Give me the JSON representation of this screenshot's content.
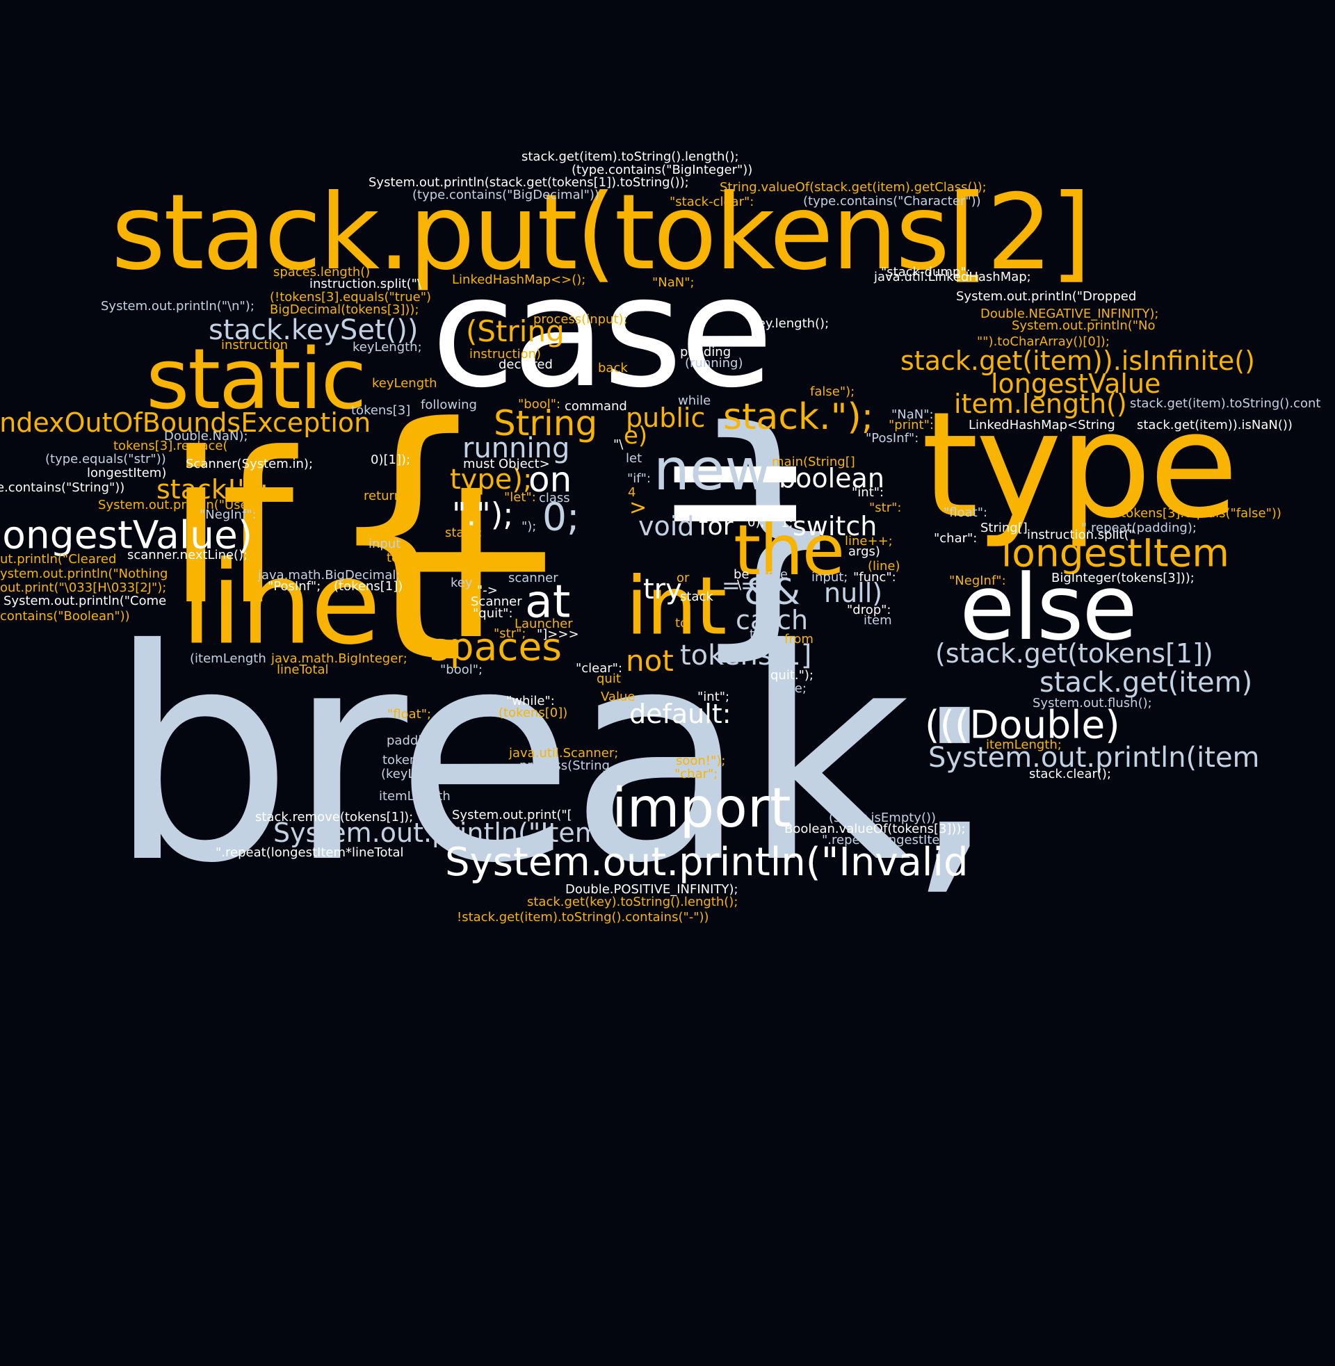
{
  "palette": {
    "background": "#03060f",
    "white": "#ffffff",
    "yellow": "#f8b400",
    "light": "#c3d2e2"
  },
  "words": [
    {
      "text": "break;",
      "color": "light"
    },
    {
      "text": "case",
      "color": "white"
    },
    {
      "text": "if",
      "color": "yellow"
    },
    {
      "text": "{",
      "color": "yellow"
    },
    {
      "text": "}",
      "color": "light"
    },
    {
      "text": "+",
      "color": "yellow"
    },
    {
      "text": "=",
      "color": "white"
    },
    {
      "text": "type",
      "color": "yellow"
    },
    {
      "text": "stack.put(tokens[2]",
      "color": "yellow"
    },
    {
      "text": "line",
      "color": "yellow"
    },
    {
      "text": "static",
      "color": "yellow"
    },
    {
      "text": "else",
      "color": "white"
    },
    {
      "text": "int",
      "color": "yellow"
    },
    {
      "text": "the",
      "color": "yellow"
    },
    {
      "text": "new",
      "color": "light"
    },
    {
      "text": "import",
      "color": "white"
    },
    {
      "text": "System.out.println(\"Invalid",
      "color": "white"
    },
    {
      "text": "longestValue)",
      "color": "white"
    },
    {
      "text": "IndexOutOfBoundsException",
      "color": "yellow"
    },
    {
      "text": "stack.keySet())",
      "color": "light"
    },
    {
      "text": "(String",
      "color": "yellow"
    },
    {
      "text": "String",
      "color": "yellow"
    },
    {
      "text": "stack.\");",
      "color": "yellow"
    },
    {
      "text": "public",
      "color": "yellow"
    },
    {
      "text": "e)",
      "color": "yellow"
    },
    {
      "text": "running",
      "color": "light"
    },
    {
      "text": "type);",
      "color": "yellow"
    },
    {
      "text": "on",
      "color": "white"
    },
    {
      "text": "\".\");",
      "color": "white"
    },
    {
      "text": "0;",
      "color": "light"
    },
    {
      "text": "boolean",
      "color": "white"
    },
    {
      "text": "void",
      "color": "light"
    },
    {
      "text": "for",
      "color": "white"
    },
    {
      "text": "switch",
      "color": "white"
    },
    {
      "text": "stack!\");",
      "color": "yellow"
    },
    {
      "text": "at",
      "color": "white"
    },
    {
      "text": "spaces",
      "color": "yellow"
    },
    {
      "text": "try",
      "color": "white"
    },
    {
      "text": "&&",
      "color": "light"
    },
    {
      "text": "==",
      "color": "light"
    },
    {
      "text": "null)",
      "color": "light"
    },
    {
      "text": "catch",
      "color": "light"
    },
    {
      "text": "tokens[1]",
      "color": "light"
    },
    {
      "text": "not",
      "color": "yellow"
    },
    {
      "text": "default:",
      "color": "white"
    },
    {
      "text": "stack.get(item)).isInfinite()",
      "color": "yellow"
    },
    {
      "text": "longestValue",
      "color": "yellow"
    },
    {
      "text": "item.length()",
      "color": "yellow"
    },
    {
      "text": "longestItem",
      "color": "yellow"
    },
    {
      "text": "(stack.get(tokens[1])",
      "color": "light"
    },
    {
      "text": "stack.get(item)",
      "color": "light"
    },
    {
      "text": "(((Double)",
      "color": "white"
    },
    {
      "text": "System.out.println(item",
      "color": "light"
    },
    {
      "text": "System.out.println(\"Item",
      "color": "light"
    },
    {
      "text": "stack.get(item).toString().length();",
      "color": "white"
    },
    {
      "text": "(type.contains(\"BigInteger\"))",
      "color": "white"
    },
    {
      "text": "System.out.println(stack.get(tokens[1]).toString());",
      "color": "white"
    },
    {
      "text": "String.valueOf(stack.get(item).getClass());",
      "color": "yellow"
    },
    {
      "text": "(type.contains(\"BigDecimal\"))",
      "color": "light"
    },
    {
      "text": "\"stack-clear\":",
      "color": "yellow"
    },
    {
      "text": "(type.contains(\"Character\"))",
      "color": "light"
    },
    {
      "text": "spaces.length()",
      "color": "yellow"
    },
    {
      "text": "instruction.split(\"\\",
      "color": "white"
    },
    {
      "text": "LinkedHashMap<>();",
      "color": "yellow"
    },
    {
      "text": "\"NaN\";",
      "color": "yellow"
    },
    {
      "text": "java.util.LinkedHashMap;",
      "color": "white"
    },
    {
      "text": "\"stack-dump\":",
      "color": "white"
    },
    {
      "text": "System.out.println(\"\\n\");",
      "color": "light"
    },
    {
      "text": "(!tokens[3].equals(\"true\")",
      "color": "yellow"
    },
    {
      "text": "BigDecimal(tokens[3]));",
      "color": "yellow"
    },
    {
      "text": "System.out.println(\"Dropped",
      "color": "white"
    },
    {
      "text": "Double.NEGATIVE_INFINITY);",
      "color": "yellow"
    },
    {
      "text": "System.out.println(\"No",
      "color": "yellow"
    },
    {
      "text": "process(input);",
      "color": "yellow"
    },
    {
      "text": "key.length();",
      "color": "white"
    },
    {
      "text": "\"\").toCharArray()[0]);",
      "color": "yellow"
    },
    {
      "text": "instruction",
      "color": "yellow"
    },
    {
      "text": "keyLength;",
      "color": "light"
    },
    {
      "text": "instruction)",
      "color": "yellow"
    },
    {
      "text": "declared",
      "color": "white"
    },
    {
      "text": "back",
      "color": "yellow"
    },
    {
      "text": "padding",
      "color": "white"
    },
    {
      "text": "(running)",
      "color": "light"
    },
    {
      "text": "keyLength",
      "color": "yellow"
    },
    {
      "text": "false\");",
      "color": "yellow"
    },
    {
      "text": "tokens[3]",
      "color": "light"
    },
    {
      "text": "following",
      "color": "light"
    },
    {
      "text": "\"bool\":",
      "color": "yellow"
    },
    {
      "text": "command",
      "color": "white"
    },
    {
      "text": "while",
      "color": "light"
    },
    {
      "text": "stack.get(item).toString().cont",
      "color": "light"
    },
    {
      "text": "Double.NaN);",
      "color": "light"
    },
    {
      "text": "\"NaN\":",
      "color": "light"
    },
    {
      "text": "\"print\":",
      "color": "yellow"
    },
    {
      "text": "LinkedHashMap<String",
      "color": "white"
    },
    {
      "text": "stack.get(item)).isNaN())",
      "color": "white"
    },
    {
      "text": "tokens[3].replace(",
      "color": "yellow"
    },
    {
      "text": "\"PosInf\":",
      "color": "light"
    },
    {
      "text": "(type.equals(\"str\"))",
      "color": "light"
    },
    {
      "text": "Scanner(System.in);",
      "color": "white"
    },
    {
      "text": "0)[1]);",
      "color": "white"
    },
    {
      "text": "must",
      "color": "white"
    },
    {
      "text": "Object>",
      "color": "white"
    },
    {
      "text": "\"\\",
      "color": "white"
    },
    {
      "text": "let",
      "color": "light"
    },
    {
      "text": "main(String[]",
      "color": "yellow"
    },
    {
      "text": "longestItem)",
      "color": "white"
    },
    {
      "text": "\"if\":",
      "color": "light"
    },
    {
      "text": "e.contains(\"String\"))",
      "color": "white"
    },
    {
      "text": "return;",
      "color": "yellow"
    },
    {
      "text": "\"let\":",
      "color": "yellow"
    },
    {
      "text": "class",
      "color": "light"
    },
    {
      "text": "4",
      "color": "yellow"
    },
    {
      "text": "\"int\":",
      "color": "white"
    },
    {
      "text": "System.out.println(\"Use",
      "color": "yellow"
    },
    {
      "text": ">",
      "color": "yellow"
    },
    {
      "text": "\"str\":",
      "color": "yellow"
    },
    {
      "text": "\"float\":",
      "color": "light"
    },
    {
      "text": "!tokens[3].equals(\"false\"))",
      "color": "yellow"
    },
    {
      "text": "\"NegInf\":",
      "color": "light"
    },
    {
      "text": "stack;",
      "color": "yellow"
    },
    {
      "text": "\");",
      "color": "light"
    },
    {
      "text": "0);",
      "color": "white"
    },
    {
      "text": "1;",
      "color": "white"
    },
    {
      "text": "String[]",
      "color": "white"
    },
    {
      "text": "\"char\":",
      "color": "white"
    },
    {
      "text": "instruction.split(\"",
      "color": "white"
    },
    {
      "text": "\".repeat(padding);",
      "color": "light"
    },
    {
      "text": "line++;",
      "color": "yellow"
    },
    {
      "text": "input",
      "color": "light"
    },
    {
      "text": "args)",
      "color": "white"
    },
    {
      "text": "ut.println(\"Cleared",
      "color": "yellow"
    },
    {
      "text": "scanner.nextLine();",
      "color": "white"
    },
    {
      "text": "tokens",
      "color": "yellow"
    },
    {
      "text": "(line)",
      "color": "yellow"
    },
    {
      "text": "ystem.out.println(\"Nothing",
      "color": "yellow"
    },
    {
      "text": "java.math.BigDecimal;",
      "color": "light"
    },
    {
      "text": "be",
      "color": "white"
    },
    {
      "text": "true",
      "color": "light"
    },
    {
      "text": "input;",
      "color": "light"
    },
    {
      "text": "\"func\":",
      "color": "white"
    },
    {
      "text": "\"NegInf\":",
      "color": "yellow"
    },
    {
      "text": "BigInteger(tokens[3]));",
      "color": "white"
    },
    {
      "text": "out.print(\"\\033[H\\033[2J\");",
      "color": "yellow"
    },
    {
      "text": "\"PosInf\";",
      "color": "white"
    },
    {
      "text": "(tokens[1])",
      "color": "white"
    },
    {
      "text": "scanner",
      "color": "light"
    },
    {
      "text": "key",
      "color": "light"
    },
    {
      "text": "\"->",
      "color": "white"
    },
    {
      "text": "or",
      "color": "yellow"
    },
    {
      "text": "stack",
      "color": "white"
    },
    {
      "text": "\\",
      "color": "white"
    },
    {
      "text": "System.out.println(\"Come",
      "color": "white"
    },
    {
      "text": "Scanner",
      "color": "white"
    },
    {
      "text": "\"drop\":",
      "color": "white"
    },
    {
      "text": "\"quit\":",
      "color": "white"
    },
    {
      "text": "item",
      "color": "light"
    },
    {
      "text": "contains(\"Boolean\"))",
      "color": "yellow"
    },
    {
      "text": "Launcher",
      "color": "yellow"
    },
    {
      "text": "to",
      "color": "yellow"
    },
    {
      "text": "\"str\";",
      "color": "yellow"
    },
    {
      "text": "\"]>>>",
      "color": "white"
    },
    {
      "text": "true;",
      "color": "light"
    },
    {
      "text": "from",
      "color": "yellow"
    },
    {
      "text": "(itemLength",
      "color": "light"
    },
    {
      "text": "java.math.BigInteger;",
      "color": "yellow"
    },
    {
      "text": "lineTotal",
      "color": "yellow"
    },
    {
      "text": "\"bool\";",
      "color": "light"
    },
    {
      "text": "\"clear\":",
      "color": "white"
    },
    {
      "text": "quit",
      "color": "yellow"
    },
    {
      "text": "quit.\");",
      "color": "white"
    },
    {
      "text": "false;",
      "color": "light"
    },
    {
      "text": "Value",
      "color": "yellow"
    },
    {
      "text": "\"while\":",
      "color": "white"
    },
    {
      "text": "\"int\";",
      "color": "white"
    },
    {
      "text": "System.out.flush();",
      "color": "light"
    },
    {
      "text": "\"float\";",
      "color": "yellow"
    },
    {
      "text": "(tokens[0])",
      "color": "yellow"
    },
    {
      "text": "padding;",
      "color": "light"
    },
    {
      "text": "itemLength;",
      "color": "yellow"
    },
    {
      "text": "tokens[0]",
      "color": "light"
    },
    {
      "text": "java.util.Scanner;",
      "color": "yellow"
    },
    {
      "text": "soon!\");",
      "color": "yellow"
    },
    {
      "text": "(keyLength",
      "color": "light"
    },
    {
      "text": "process(String",
      "color": "light"
    },
    {
      "text": "\"char\";",
      "color": "yellow"
    },
    {
      "text": "stack.clear();",
      "color": "white"
    },
    {
      "text": "itemLength",
      "color": "light"
    },
    {
      "text": "stack.remove(tokens[1]);",
      "color": "white"
    },
    {
      "text": "System.out.print(\"[",
      "color": "white"
    },
    {
      "text": "(stack.isEmpty())",
      "color": "light"
    },
    {
      "text": "Boolean.valueOf(tokens[3]));",
      "color": "white"
    },
    {
      "text": "\".repeat(longestItem*lineTotal",
      "color": "white"
    },
    {
      "text": "\".repeat(longestItem",
      "color": "light"
    },
    {
      "text": "Double.POSITIVE_INFINITY);",
      "color": "white"
    },
    {
      "text": "stack.get(key).toString().length();",
      "color": "yellow"
    },
    {
      "text": "!stack.get(item).toString().contains(\"-\"))",
      "color": "yellow"
    }
  ]
}
